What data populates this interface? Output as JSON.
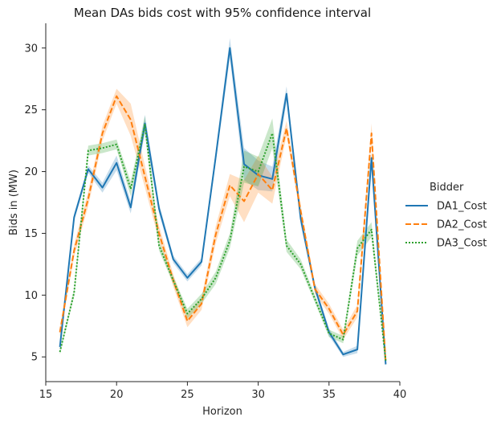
{
  "chart_data": {
    "type": "line",
    "title": "Mean DAs bids cost with 95% confidence interval",
    "xlabel": "Horizon",
    "ylabel": "Bids in (MW)",
    "xlim": [
      15,
      40
    ],
    "ylim": [
      3,
      32
    ],
    "xticks": [
      15,
      20,
      25,
      30,
      35,
      40
    ],
    "yticks": [
      5,
      10,
      15,
      20,
      25,
      30
    ],
    "grid": false,
    "legend": {
      "title": "Bidder",
      "placement": "right"
    },
    "x": [
      16,
      17,
      18,
      19,
      20,
      21,
      22,
      23,
      24,
      25,
      26,
      27,
      28,
      29,
      30,
      31,
      32,
      33,
      34,
      35,
      36,
      37,
      38,
      39
    ],
    "series": [
      {
        "name": "DA1_Cost",
        "color": "#1f77b4",
        "dash": "solid",
        "values": [
          5.8,
          16.3,
          20.2,
          18.7,
          20.7,
          17.1,
          23.9,
          17.0,
          12.9,
          11.4,
          12.7,
          21.2,
          30.0,
          20.6,
          19.7,
          19.4,
          26.3,
          16.2,
          10.6,
          7.0,
          5.2,
          5.6,
          21.1,
          4.4
        ],
        "ci": [
          0.3,
          0.3,
          0.3,
          0.4,
          0.6,
          0.5,
          0.7,
          0.4,
          0.3,
          0.3,
          0.3,
          0.5,
          0.8,
          1.3,
          1.2,
          1.0,
          0.6,
          0.5,
          0.3,
          0.3,
          0.2,
          0.3,
          0.4,
          0.2
        ]
      },
      {
        "name": "DA2_Cost",
        "color": "#ff7f0e",
        "dash": "dashed",
        "values": [
          7.0,
          13.6,
          17.8,
          23.1,
          26.1,
          24.2,
          19.6,
          15.0,
          11.2,
          7.9,
          9.3,
          14.9,
          18.9,
          17.6,
          19.8,
          18.5,
          23.5,
          16.8,
          10.5,
          8.9,
          6.8,
          8.7,
          23.1,
          4.6
        ],
        "ci": [
          0.4,
          0.5,
          0.6,
          0.6,
          0.6,
          1.3,
          0.9,
          0.6,
          0.5,
          0.5,
          0.5,
          0.7,
          0.9,
          1.7,
          1.5,
          1.1,
          0.6,
          0.5,
          0.4,
          0.4,
          0.4,
          0.5,
          0.8,
          0.2
        ]
      },
      {
        "name": "DA3_Cost",
        "color": "#2ca02c",
        "dash": "dotted",
        "values": [
          5.4,
          10.2,
          21.7,
          21.9,
          22.2,
          18.6,
          23.8,
          14.0,
          11.2,
          8.5,
          9.7,
          11.4,
          14.4,
          20.4,
          20.0,
          23.1,
          14.0,
          12.5,
          9.7,
          6.9,
          6.4,
          13.8,
          15.3,
          4.7
        ],
        "ci": [
          0.2,
          0.3,
          0.4,
          0.4,
          0.4,
          0.6,
          0.7,
          0.4,
          0.3,
          0.4,
          0.4,
          0.5,
          0.6,
          1.3,
          1.2,
          1.2,
          0.5,
          0.4,
          0.3,
          0.3,
          0.3,
          0.6,
          0.6,
          0.2
        ]
      }
    ]
  }
}
